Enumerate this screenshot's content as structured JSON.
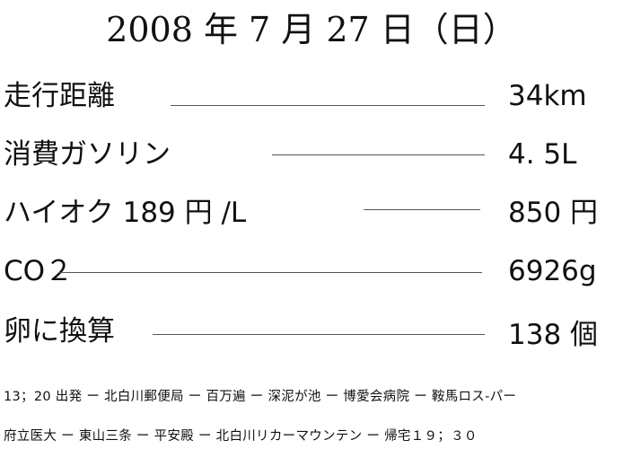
{
  "header": {
    "title": "2008 年 7 月 27 日（日）"
  },
  "rows": [
    {
      "label": "走行距離",
      "value": "34km"
    },
    {
      "label": "消費ガソリン",
      "value": "4. 5L"
    },
    {
      "label": "ハイオク 189 円 /L",
      "value": "850 円"
    },
    {
      "label": "CO２",
      "value": "6926g"
    },
    {
      "label": "卵に換算",
      "value": "138 個"
    }
  ],
  "route": [
    "13；20 出発 ー 北白川郵便局 ー 百万遍 ー 深泥が池 ー 博愛会病院 ー 鞍馬ロス-パー",
    "府立医大 ー 東山三条 ー 平安殿 ー 北白川リカーマウンテン ー 帰宅１９；３０"
  ]
}
